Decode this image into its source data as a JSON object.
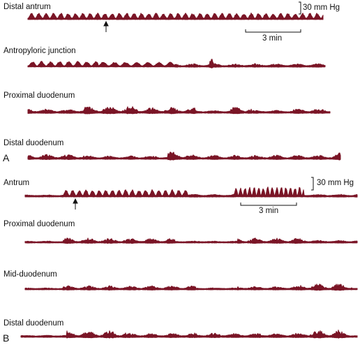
{
  "panels": {
    "A": {
      "letter": "A",
      "scale_vertical": "30 mm Hg",
      "scale_time": "3 min",
      "traces": [
        {
          "label": "Distal antrum"
        },
        {
          "label": "Antropyloric junction"
        },
        {
          "label": "Proximal duodenum"
        },
        {
          "label": "Distal duodenum"
        }
      ]
    },
    "B": {
      "letter": "B",
      "scale_vertical": "30 mm Hg",
      "scale_time": "3 min",
      "traces": [
        {
          "label": "Antrum"
        },
        {
          "label": "Proximal duodenum"
        },
        {
          "label": "Mid-duodenum"
        },
        {
          "label": "Distal duodenum"
        }
      ]
    }
  },
  "colors": {
    "trace": "#7a1526",
    "ink": "#111111"
  },
  "icons": {
    "stimulus_marker": "up-arrow-icon"
  }
}
